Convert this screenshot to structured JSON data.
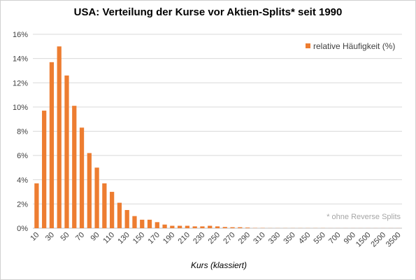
{
  "chart_data": {
    "type": "bar",
    "title": "USA: Verteilung der Kurse vor Aktien-Splits*  seit 1990",
    "xlabel": "Kurs (klassiert)",
    "ylabel": "",
    "ylim": [
      0,
      16
    ],
    "y_unit": "%",
    "y_ticks": [
      "0%",
      "2%",
      "4%",
      "6%",
      "8%",
      "10%",
      "12%",
      "14%",
      "16%"
    ],
    "categories": [
      "10",
      "20",
      "30",
      "40",
      "50",
      "60",
      "70",
      "80",
      "90",
      "100",
      "110",
      "120",
      "130",
      "140",
      "150",
      "160",
      "170",
      "180",
      "190",
      "200",
      "210",
      "220",
      "230",
      "240",
      "250",
      "260",
      "270",
      "280",
      "290",
      "300",
      "310",
      "320",
      "330",
      "340",
      "350",
      "400",
      "450",
      "500",
      "550",
      "600",
      "700",
      "800",
      "900",
      "1000",
      "1500",
      "2000",
      "2500",
      "3000",
      "3500"
    ],
    "x_tick_labels": [
      "10",
      "30",
      "50",
      "70",
      "90",
      "110",
      "130",
      "150",
      "170",
      "190",
      "210",
      "230",
      "250",
      "270",
      "290",
      "310",
      "330",
      "350",
      "450",
      "550",
      "700",
      "900",
      "1500",
      "2500",
      "3500"
    ],
    "series": [
      {
        "name": "relative Häufigkeit (%)",
        "color": "#ED7D31",
        "values": [
          3.7,
          9.7,
          13.7,
          15.0,
          12.6,
          10.1,
          8.3,
          6.2,
          5.0,
          3.7,
          3.0,
          2.1,
          1.5,
          1.0,
          0.7,
          0.7,
          0.5,
          0.3,
          0.2,
          0.2,
          0.2,
          0.15,
          0.15,
          0.2,
          0.15,
          0.1,
          0.08,
          0.08,
          0.05,
          0.02,
          0.02,
          0.01,
          0.01,
          0.01,
          0.01,
          0.01,
          0.01,
          0.01,
          0.01,
          0.005,
          0.005,
          0.005,
          0.005,
          0.005,
          0.005,
          0.005,
          0.005,
          0.005,
          0.005
        ]
      }
    ],
    "legend": "top-right",
    "grid": true,
    "annotation": "* ohne Reverse Splits"
  }
}
